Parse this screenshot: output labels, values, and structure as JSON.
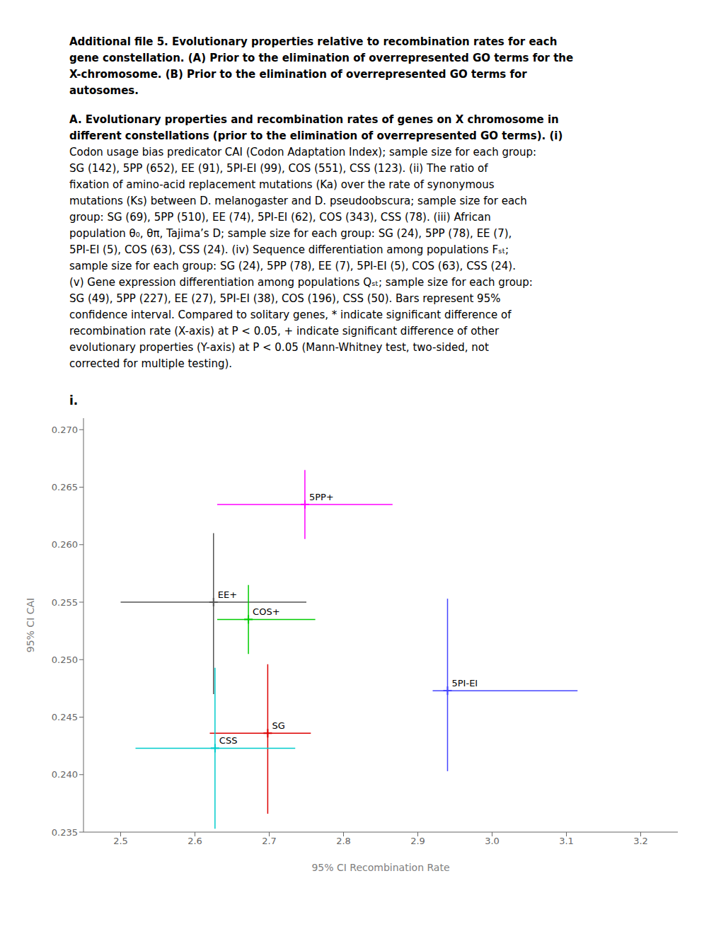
{
  "chart_data": {
    "type": "scatter",
    "title": [
      "Additional file 5. Evolutionary properties relative to recombination rates for each",
      "gene constellation. (A) Prior to the elimination of overrepresented GO terms for the",
      "X-chromosome. (B) Prior to the elimination of overrepresented GO terms for",
      "autosomes."
    ],
    "subtitle": [
      "A. Evolutionary properties and recombination rates of genes on X chromosome in",
      "different constellations (prior to the elimination of overrepresented GO terms). (i)"
    ],
    "annotations": [
      "Codon usage bias predicator CAI (Codon Adaptation Index); sample size for each group:",
      "SG (142), 5PP (652), EE (91), 5PI-EI (99), COS (551), CSS (123). (ii) The ratio of",
      "fixation of amino-acid replacement mutations (Ka) over the rate of synonymous",
      "mutations (Ks) between D. melanogaster and D. pseudoobscura; sample size for each",
      "group: SG (69), 5PP (510), EE (74), 5PI-EI (62), COS (343), CSS (78). (iii) African",
      "population θ₀, θπ, Tajima’s D; sample size for each group: SG (24), 5PP (78), EE (7),",
      "5PI-EI (5), COS (63), CSS (24). (iv) Sequence differentiation among populations Fₛₜ;",
      "sample size for each group: SG (24), 5PP (78), EE (7), 5PI-EI (5), COS (63), CSS (24).",
      "(v) Gene expression differentiation among populations Qₛₜ; sample size for each group:",
      "SG (49), 5PP (227), EE (27), 5PI-EI (38), COS (196), CSS (50). Bars represent 95%",
      "confidence interval. Compared to solitary genes, * indicate significant difference of",
      "recombination rate (X-axis) at P < 0.05, + indicate significant difference of other",
      "evolutionary properties (Y-axis) at P < 0.05 (Mann-Whitney test, two-sided, not",
      "corrected for multiple testing)."
    ],
    "panel_label": "i.",
    "x_label": "95% CI Recombination Rate",
    "y_label": "95% CI CAI",
    "xlim": [
      2.45,
      3.25
    ],
    "ylim": [
      0.235,
      0.271
    ],
    "xticks": [
      2.5,
      2.6,
      2.7,
      2.8,
      2.9,
      {
        "value": 3.0,
        "label": "3.0"
      },
      3.1,
      3.2
    ],
    "yticks": [
      0.235,
      {
        "value": 0.24,
        "label": "0.240"
      },
      0.245,
      {
        "value": 0.25,
        "label": "0.250"
      },
      0.255,
      {
        "value": 0.26,
        "label": "0.260"
      },
      0.265,
      {
        "value": 0.27,
        "label": "0.270"
      }
    ],
    "grid": false,
    "marker": "plus",
    "series": [
      {
        "name": "5PP+",
        "color": "#FF00FF",
        "x": [
          2.748
        ],
        "values": [
          0.2635
        ],
        "xerr_lo": [
          0.118
        ],
        "xerr_hi": [
          0.118
        ],
        "yerr_lo": [
          0.003
        ],
        "yerr_hi": [
          0.003
        ]
      },
      {
        "name": "EE+",
        "color": "#555555",
        "x": [
          2.625
        ],
        "values": [
          0.255
        ],
        "xerr_lo": [
          0.125
        ],
        "xerr_hi": [
          0.125
        ],
        "yerr_lo": [
          0.008
        ],
        "yerr_hi": [
          0.006
        ]
      },
      {
        "name": "COS+",
        "color": "#00CC00",
        "x": [
          2.672
        ],
        "values": [
          0.2535
        ],
        "xerr_lo": [
          0.042
        ],
        "xerr_hi": [
          0.09
        ],
        "yerr_lo": [
          0.003
        ],
        "yerr_hi": [
          0.003
        ]
      },
      {
        "name": "5PI-EI",
        "color": "#4444FF",
        "x": [
          2.94
        ],
        "values": [
          0.2473
        ],
        "xerr_lo": [
          0.02
        ],
        "xerr_hi": [
          0.175
        ],
        "yerr_lo": [
          0.007
        ],
        "yerr_hi": [
          0.008
        ]
      },
      {
        "name": "SG",
        "color": "#DD0000",
        "x": [
          2.698
        ],
        "values": [
          0.2436
        ],
        "xerr_lo": [
          0.078
        ],
        "xerr_hi": [
          0.058
        ],
        "yerr_lo": [
          0.007
        ],
        "yerr_hi": [
          0.006
        ]
      },
      {
        "name": "CSS",
        "color": "#00CCCC",
        "x": [
          2.627
        ],
        "values": [
          0.2423
        ],
        "xerr_lo": [
          0.107
        ],
        "xerr_hi": [
          0.108
        ],
        "yerr_lo": [
          0.007
        ],
        "yerr_hi": [
          0.007
        ]
      }
    ]
  }
}
